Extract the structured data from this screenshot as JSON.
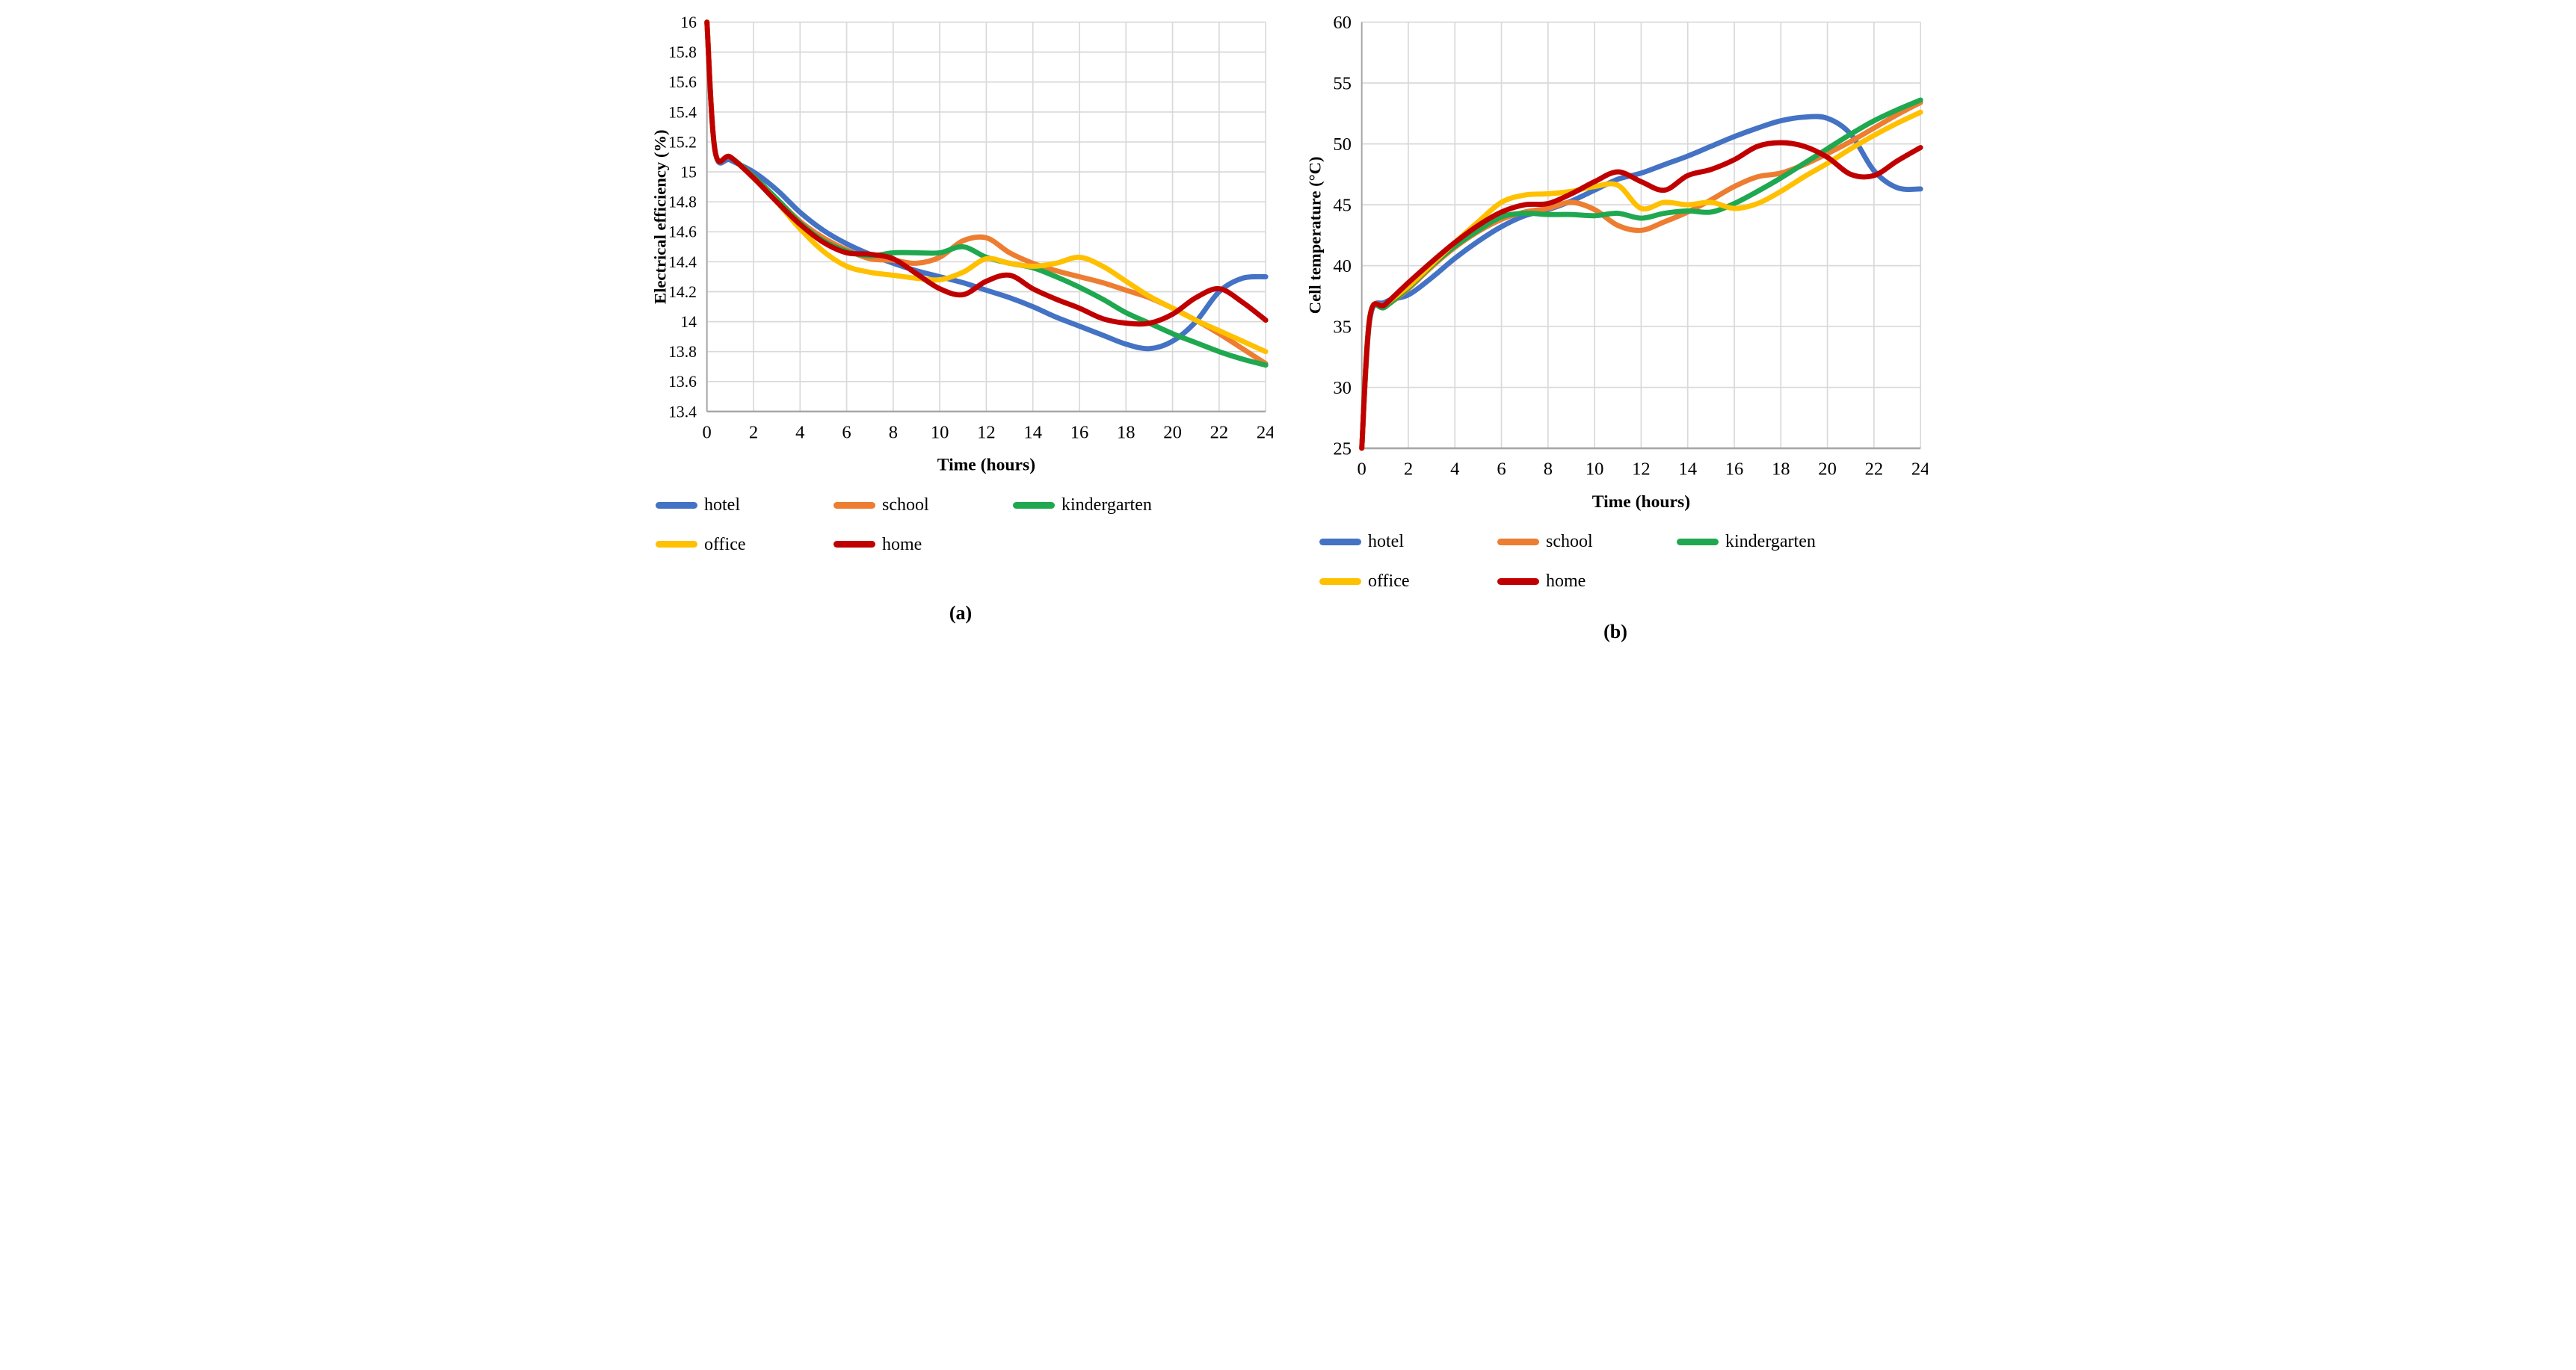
{
  "figure": {
    "background": "#ffffff",
    "grid_color": "#d9d9d9",
    "axis_color": "#a6a6a6",
    "text_color": "#000000"
  },
  "chart_data": [
    {
      "type": "line",
      "caption": "(a)",
      "xlabel": "Time (hours)",
      "ylabel": "Electrical efficiency (%)",
      "xlim": [
        0,
        24
      ],
      "ylim": [
        13.4,
        16
      ],
      "grid": true,
      "legend_position": "below",
      "xticks": {
        "values": [
          0,
          2,
          4,
          6,
          8,
          10,
          12,
          14,
          16,
          18,
          20,
          22,
          24
        ],
        "labels": [
          "0",
          "2",
          "4",
          "6",
          "8",
          "10",
          "12",
          "14",
          "16",
          "18",
          "20",
          "22",
          "24"
        ]
      },
      "yticks": {
        "values": [
          13.4,
          13.6,
          13.8,
          14,
          14.2,
          14.4,
          14.6,
          14.8,
          15,
          15.2,
          15.4,
          15.6,
          15.8,
          16
        ],
        "labels": [
          "13.4",
          "13.6",
          "13.8",
          "14",
          "14.2",
          "14.4",
          "14.6",
          "14.8",
          "15",
          "15.2",
          "15.4",
          "15.6",
          "15.8",
          "16"
        ]
      },
      "x": [
        0,
        0.35,
        1,
        2,
        3,
        4,
        5,
        6,
        7,
        8,
        9,
        10,
        11,
        12,
        13,
        14,
        15,
        16,
        17,
        18,
        19,
        20,
        21,
        22,
        23,
        24
      ],
      "series": [
        {
          "name": "hotel",
          "color": "#4472C4",
          "values": [
            16,
            15.14,
            15.08,
            15.0,
            14.88,
            14.73,
            14.61,
            14.52,
            14.45,
            14.39,
            14.34,
            14.3,
            14.26,
            14.21,
            14.16,
            14.1,
            14.03,
            13.97,
            13.91,
            13.85,
            13.82,
            13.87,
            14.0,
            14.2,
            14.29,
            14.3
          ]
        },
        {
          "name": "school",
          "color": "#ED7D31",
          "values": [
            16,
            15.14,
            15.1,
            14.97,
            14.82,
            14.67,
            14.56,
            14.48,
            14.42,
            14.41,
            14.39,
            14.43,
            14.54,
            14.56,
            14.46,
            14.39,
            14.34,
            14.3,
            14.26,
            14.21,
            14.16,
            14.09,
            14.01,
            13.92,
            13.82,
            13.72
          ]
        },
        {
          "name": "kindergarten",
          "color": "#1FA84F",
          "values": [
            16,
            15.14,
            15.1,
            14.97,
            14.82,
            14.66,
            14.54,
            14.47,
            14.44,
            14.46,
            14.46,
            14.46,
            14.5,
            14.43,
            14.39,
            14.36,
            14.3,
            14.23,
            14.15,
            14.06,
            13.99,
            13.92,
            13.86,
            13.8,
            13.75,
            13.71
          ]
        },
        {
          "name": "office",
          "color": "#FFC000",
          "values": [
            16,
            15.14,
            15.1,
            14.96,
            14.8,
            14.62,
            14.47,
            14.37,
            14.33,
            14.31,
            14.29,
            14.28,
            14.33,
            14.42,
            14.39,
            14.37,
            14.39,
            14.43,
            14.37,
            14.27,
            14.17,
            14.09,
            14.01,
            13.94,
            13.87,
            13.8
          ]
        },
        {
          "name": "home",
          "color": "#C00000",
          "values": [
            16,
            15.14,
            15.1,
            14.96,
            14.8,
            14.65,
            14.53,
            14.46,
            14.45,
            14.42,
            14.32,
            14.22,
            14.18,
            14.27,
            14.31,
            14.22,
            14.15,
            14.09,
            14.02,
            13.99,
            13.99,
            14.05,
            14.16,
            14.22,
            14.13,
            14.01
          ]
        }
      ]
    },
    {
      "type": "line",
      "caption": "(b)",
      "xlabel": "Time (hours)",
      "ylabel": "Cell temperature (°C)",
      "xlim": [
        0,
        24
      ],
      "ylim": [
        25,
        60
      ],
      "grid": true,
      "legend_position": "below",
      "xticks": {
        "values": [
          0,
          2,
          4,
          6,
          8,
          10,
          12,
          14,
          16,
          18,
          20,
          22,
          24
        ],
        "labels": [
          "0",
          "2",
          "4",
          "6",
          "8",
          "10",
          "12",
          "14",
          "16",
          "18",
          "20",
          "22",
          "24"
        ]
      },
      "yticks": {
        "values": [
          25,
          30,
          35,
          40,
          45,
          50,
          55,
          60
        ],
        "labels": [
          "25",
          "30",
          "35",
          "40",
          "45",
          "50",
          "55",
          "60"
        ]
      },
      "x": [
        0,
        0.35,
        1,
        2,
        3,
        4,
        5,
        6,
        7,
        8,
        9,
        10,
        11,
        12,
        13,
        14,
        15,
        16,
        17,
        18,
        19,
        20,
        21,
        22,
        23,
        24
      ],
      "series": [
        {
          "name": "hotel",
          "color": "#4472C4",
          "values": [
            25,
            35.6,
            37.0,
            37.6,
            39.0,
            40.6,
            42.0,
            43.2,
            44.1,
            44.6,
            45.3,
            46.2,
            47.1,
            47.6,
            48.3,
            49.0,
            49.8,
            50.6,
            51.3,
            51.9,
            52.2,
            52.1,
            50.8,
            47.8,
            46.4,
            46.3
          ]
        },
        {
          "name": "school",
          "color": "#ED7D31",
          "values": [
            25,
            35.8,
            36.6,
            38.1,
            39.9,
            41.5,
            42.8,
            43.8,
            44.4,
            44.7,
            45.2,
            44.6,
            43.3,
            42.9,
            43.6,
            44.4,
            45.4,
            46.5,
            47.3,
            47.6,
            48.3,
            49.2,
            50.2,
            51.3,
            52.4,
            53.4
          ]
        },
        {
          "name": "kindergarten",
          "color": "#1FA84F",
          "values": [
            25,
            35.8,
            36.6,
            38.2,
            40.0,
            41.6,
            42.9,
            44.0,
            44.3,
            44.2,
            44.2,
            44.1,
            44.3,
            43.9,
            44.3,
            44.5,
            44.4,
            45.1,
            46.1,
            47.2,
            48.4,
            49.6,
            50.8,
            51.9,
            52.8,
            53.6
          ]
        },
        {
          "name": "office",
          "color": "#FFC000",
          "values": [
            25,
            35.8,
            36.8,
            38.3,
            40.1,
            41.9,
            43.6,
            45.2,
            45.8,
            45.9,
            46.1,
            46.5,
            46.6,
            44.7,
            45.2,
            45.0,
            45.2,
            44.7,
            45.1,
            46.1,
            47.3,
            48.4,
            49.6,
            50.7,
            51.7,
            52.6
          ]
        },
        {
          "name": "home",
          "color": "#C00000",
          "values": [
            25,
            35.8,
            36.8,
            38.6,
            40.3,
            41.9,
            43.3,
            44.4,
            45.0,
            45.1,
            45.9,
            46.9,
            47.7,
            46.9,
            46.2,
            47.4,
            47.9,
            48.7,
            49.8,
            50.1,
            49.8,
            48.9,
            47.5,
            47.4,
            48.6,
            49.7
          ]
        }
      ]
    }
  ]
}
